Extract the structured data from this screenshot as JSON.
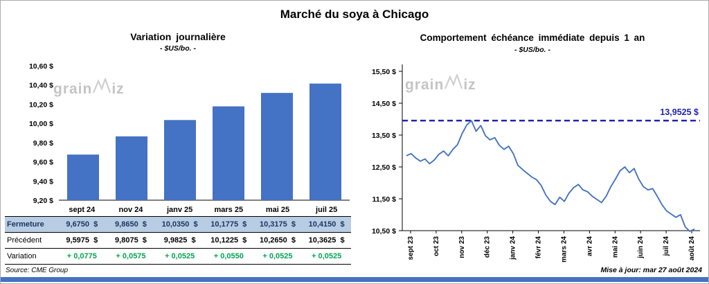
{
  "page": {
    "title": "Marché du soya à Chicago",
    "source_label": "Source: CME Group",
    "updated_label": "Mise à jour: mar 27 août 2024"
  },
  "watermark": {
    "pre": "grain",
    "post": "iz"
  },
  "colors": {
    "bar": "#4472c4",
    "line": "#4472c4",
    "reference": "#2222b2",
    "variation_green": "#00a651",
    "fermeture_bg": "#b8cce4",
    "fermeture_text": "#17375e",
    "footer_bar": "#4472c4",
    "watermark": "#c4c4c4"
  },
  "chart_data": [
    {
      "type": "bar",
      "title": "Variation journalière",
      "subtitle": "- $US/bo. -",
      "categories": [
        "sept 24",
        "nov 24",
        "janv 25",
        "mars 25",
        "mai 25",
        "juil 25"
      ],
      "values": [
        9.675,
        9.865,
        10.035,
        10.1775,
        10.3175,
        10.415
      ],
      "ylim": [
        9.2,
        10.6
      ],
      "ytick_values": [
        10.6,
        10.4,
        10.2,
        10.0,
        9.8,
        9.6,
        9.4,
        9.2
      ],
      "ytick_labels": [
        "10,60 $",
        "10,40 $",
        "10,20 $",
        "10,00 $",
        "9,80 $",
        "9,60 $",
        "9,40 $",
        "9,20 $"
      ],
      "grid": false,
      "table": {
        "rows": [
          {
            "label": "Fermeture",
            "values": [
              "9,6750  $",
              "9,8650  $",
              "10,0350  $",
              "10,1775  $",
              "10,3175  $",
              "10,4150  $"
            ]
          },
          {
            "label": "Précédent",
            "values": [
              "9,5975  $",
              "9,8075  $",
              "9,9825  $",
              "10,1225  $",
              "10,2650  $",
              "10,3625  $"
            ]
          },
          {
            "label": "Variation",
            "values": [
              "+ 0,0775",
              "+ 0,0575",
              "+ 0,0525",
              "+ 0,0550",
              "+ 0,0525",
              "+ 0,0525"
            ]
          }
        ]
      }
    },
    {
      "type": "line",
      "title": "Comportement échéance immédiate depuis 1 an",
      "subtitle": "- $US/bo. -",
      "x_labels": [
        "sept 23",
        "oct 23",
        "nov 23",
        "déc 23",
        "janv 24",
        "févr 24",
        "mars 24",
        "avr 24",
        "mai 24",
        "juin 24",
        "juil 24",
        "août 24"
      ],
      "ylim": [
        10.5,
        15.5
      ],
      "ytick_values": [
        15.5,
        14.5,
        13.5,
        12.5,
        11.5,
        10.5
      ],
      "ytick_labels": [
        "15,50 $",
        "14,50 $",
        "13,50 $",
        "12,50 $",
        "11,50 $",
        "10,50 $"
      ],
      "reference_line": {
        "value": 13.9525,
        "label": "13,9525 $"
      },
      "grid": false,
      "points": [
        12.85,
        12.92,
        12.78,
        12.68,
        12.75,
        12.6,
        12.72,
        12.9,
        13.0,
        12.85,
        13.05,
        13.2,
        13.55,
        13.82,
        13.95,
        13.62,
        13.8,
        13.48,
        13.35,
        13.42,
        13.18,
        13.05,
        13.15,
        12.92,
        12.55,
        12.42,
        12.3,
        12.18,
        12.1,
        11.92,
        11.62,
        11.42,
        11.32,
        11.55,
        11.42,
        11.68,
        11.85,
        11.95,
        11.78,
        11.72,
        11.58,
        11.48,
        11.38,
        11.58,
        11.88,
        12.12,
        12.38,
        12.5,
        12.32,
        12.45,
        12.12,
        11.88,
        11.78,
        11.82,
        11.58,
        11.32,
        11.12,
        11.02,
        10.92,
        11.0,
        10.62,
        10.48,
        10.55
      ]
    }
  ]
}
